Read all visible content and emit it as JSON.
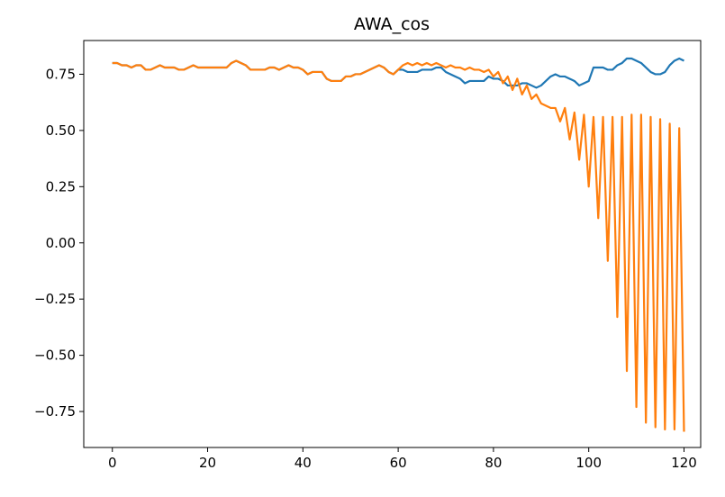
{
  "chart_data": {
    "type": "line",
    "title": "AWA_cos",
    "x": [
      0,
      1,
      2,
      3,
      4,
      5,
      6,
      7,
      8,
      9,
      10,
      11,
      12,
      13,
      14,
      15,
      16,
      17,
      18,
      19,
      20,
      21,
      22,
      23,
      24,
      25,
      26,
      27,
      28,
      29,
      30,
      31,
      32,
      33,
      34,
      35,
      36,
      37,
      38,
      39,
      40,
      41,
      42,
      43,
      44,
      45,
      46,
      47,
      48,
      49,
      50,
      51,
      52,
      53,
      54,
      55,
      56,
      57,
      58,
      59,
      60,
      61,
      62,
      63,
      64,
      65,
      66,
      67,
      68,
      69,
      70,
      71,
      72,
      73,
      74,
      75,
      76,
      77,
      78,
      79,
      80,
      81,
      82,
      83,
      84,
      85,
      86,
      87,
      88,
      89,
      90,
      91,
      92,
      93,
      94,
      95,
      96,
      97,
      98,
      99,
      100,
      101,
      102,
      103,
      104,
      105,
      106,
      107,
      108,
      109,
      110,
      111,
      112,
      113,
      114,
      115,
      116,
      117,
      118,
      119,
      120
    ],
    "series": [
      {
        "color": "#1f77b4",
        "values": [
          0.8,
          0.8,
          0.79,
          0.79,
          0.78,
          0.79,
          0.79,
          0.77,
          0.77,
          0.78,
          0.79,
          0.78,
          0.78,
          0.78,
          0.77,
          0.77,
          0.78,
          0.79,
          0.78,
          0.78,
          0.78,
          0.78,
          0.78,
          0.78,
          0.78,
          0.8,
          0.81,
          0.8,
          0.79,
          0.77,
          0.77,
          0.77,
          0.77,
          0.78,
          0.78,
          0.77,
          0.78,
          0.79,
          0.78,
          0.78,
          0.77,
          0.75,
          0.76,
          0.76,
          0.76,
          0.73,
          0.72,
          0.72,
          0.72,
          0.74,
          0.74,
          0.75,
          0.75,
          0.76,
          0.77,
          0.78,
          0.79,
          0.78,
          0.76,
          0.75,
          0.77,
          0.77,
          0.76,
          0.76,
          0.76,
          0.77,
          0.77,
          0.77,
          0.78,
          0.78,
          0.76,
          0.75,
          0.74,
          0.73,
          0.71,
          0.72,
          0.72,
          0.72,
          0.72,
          0.74,
          0.73,
          0.73,
          0.72,
          0.7,
          0.7,
          0.7,
          0.71,
          0.71,
          0.7,
          0.69,
          0.7,
          0.72,
          0.74,
          0.75,
          0.74,
          0.74,
          0.73,
          0.72,
          0.7,
          0.71,
          0.72,
          0.78,
          0.78,
          0.78,
          0.77,
          0.77,
          0.79,
          0.8,
          0.82,
          0.82,
          0.81,
          0.8,
          0.78,
          0.76,
          0.75,
          0.75,
          0.76,
          0.79,
          0.81,
          0.82,
          0.81
        ]
      },
      {
        "color": "#ff7f0e",
        "values": [
          0.8,
          0.8,
          0.79,
          0.79,
          0.78,
          0.79,
          0.79,
          0.77,
          0.77,
          0.78,
          0.79,
          0.78,
          0.78,
          0.78,
          0.77,
          0.77,
          0.78,
          0.79,
          0.78,
          0.78,
          0.78,
          0.78,
          0.78,
          0.78,
          0.78,
          0.8,
          0.81,
          0.8,
          0.79,
          0.77,
          0.77,
          0.77,
          0.77,
          0.78,
          0.78,
          0.77,
          0.78,
          0.79,
          0.78,
          0.78,
          0.77,
          0.75,
          0.76,
          0.76,
          0.76,
          0.73,
          0.72,
          0.72,
          0.72,
          0.74,
          0.74,
          0.75,
          0.75,
          0.76,
          0.77,
          0.78,
          0.79,
          0.78,
          0.76,
          0.75,
          0.77,
          0.79,
          0.8,
          0.79,
          0.8,
          0.79,
          0.8,
          0.79,
          0.8,
          0.79,
          0.78,
          0.79,
          0.78,
          0.78,
          0.77,
          0.78,
          0.77,
          0.77,
          0.76,
          0.77,
          0.74,
          0.76,
          0.71,
          0.74,
          0.68,
          0.73,
          0.66,
          0.7,
          0.64,
          0.66,
          0.62,
          0.61,
          0.6,
          0.6,
          0.54,
          0.6,
          0.46,
          0.58,
          0.37,
          0.57,
          0.25,
          0.56,
          0.11,
          0.56,
          -0.08,
          0.56,
          -0.33,
          0.56,
          -0.57,
          0.57,
          -0.73,
          0.57,
          -0.8,
          0.56,
          -0.82,
          0.55,
          -0.83,
          0.53,
          -0.83,
          0.51,
          -0.84
        ]
      }
    ],
    "xlim": [
      -6,
      123.5
    ],
    "ylim": [
      -0.91,
      0.9
    ],
    "xticks": [
      0,
      20,
      40,
      60,
      80,
      100,
      120
    ],
    "yticks": [
      {
        "value": -0.75,
        "label": "−0.75"
      },
      {
        "value": -0.5,
        "label": "−0.50"
      },
      {
        "value": -0.25,
        "label": "−0.25"
      },
      {
        "value": 0,
        "label": "0.00"
      },
      0.25,
      {
        "value": 0.5,
        "label": "0.50"
      },
      0.75
    ],
    "grid": false
  }
}
